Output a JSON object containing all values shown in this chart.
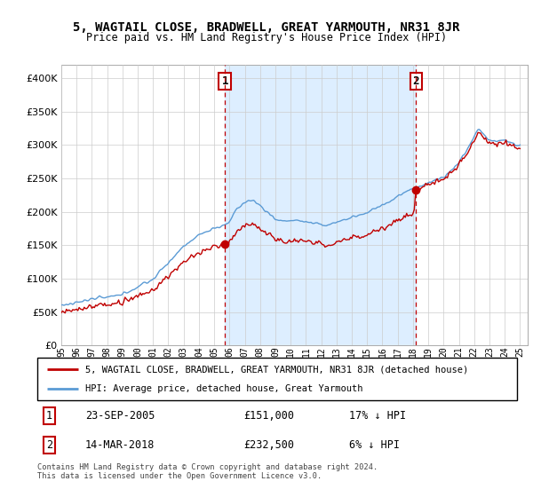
{
  "title": "5, WAGTAIL CLOSE, BRADWELL, GREAT YARMOUTH, NR31 8JR",
  "subtitle": "Price paid vs. HM Land Registry's House Price Index (HPI)",
  "legend_line1": "5, WAGTAIL CLOSE, BRADWELL, GREAT YARMOUTH, NR31 8JR (detached house)",
  "legend_line2": "HPI: Average price, detached house, Great Yarmouth",
  "transaction1_date": "23-SEP-2005",
  "transaction1_price": "£151,000",
  "transaction1_hpi": "17% ↓ HPI",
  "transaction1_value": 151000,
  "transaction1_year": 2005.708,
  "transaction2_date": "14-MAR-2018",
  "transaction2_price": "£232,500",
  "transaction2_hpi": "6% ↓ HPI",
  "transaction2_value": 232500,
  "transaction2_year": 2018.208,
  "footer": "Contains HM Land Registry data © Crown copyright and database right 2024.\nThis data is licensed under the Open Government Licence v3.0.",
  "hpi_color": "#5b9bd5",
  "price_color": "#c00000",
  "vline_color": "#c00000",
  "fill_color": "#ddeeff",
  "grid_color": "#cccccc",
  "background_color": "#ffffff",
  "ylim": [
    0,
    420000
  ],
  "yticks": [
    0,
    50000,
    100000,
    150000,
    200000,
    250000,
    300000,
    350000,
    400000
  ],
  "year_start": 1995,
  "year_end": 2025
}
